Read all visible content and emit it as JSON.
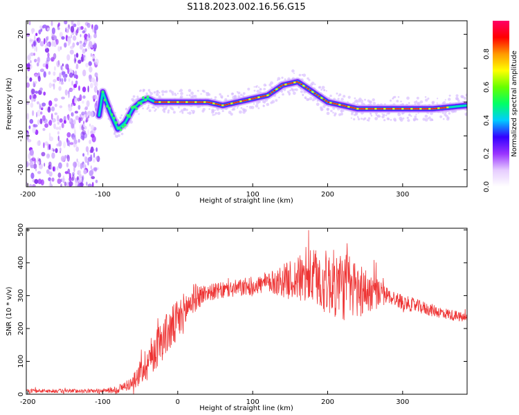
{
  "title": "S118.2023.002.16.56.G15",
  "chart_data": [
    {
      "type": "heatmap",
      "xlabel": "Height of straight line (km)",
      "ylabel": "Frequency (Hz)",
      "xlim": [
        -202,
        386
      ],
      "ylim": [
        -25,
        24
      ],
      "xticks": [
        -200,
        -100,
        0,
        100,
        200,
        300
      ],
      "yticks": [
        -20,
        -10,
        0,
        10,
        20
      ],
      "colorbar": {
        "label": "Normalized spectral amplitude",
        "range": [
          0,
          1
        ],
        "ticks": [
          "0.0",
          "0.2",
          "0.4",
          "0.6",
          "0.8"
        ],
        "colors": [
          "#ffffff",
          "#e6ccff",
          "#9933ff",
          "#3300ff",
          "#00ccff",
          "#00ff66",
          "#66ff00",
          "#ffff00",
          "#ff9900",
          "#ff0000",
          "#ff0066"
        ]
      },
      "ridge": {
        "x": [
          -105,
          -100,
          -90,
          -80,
          -70,
          -60,
          -50,
          -40,
          -30,
          0,
          40,
          60,
          80,
          100,
          120,
          140,
          160,
          180,
          200,
          220,
          240,
          260,
          300,
          340,
          386
        ],
        "y": [
          -4,
          3,
          -3,
          -8,
          -6,
          -2,
          0,
          1,
          0,
          0,
          0,
          -1,
          0,
          1,
          2,
          5,
          6,
          3,
          0,
          -1,
          -2,
          -2,
          -2,
          -2,
          -1
        ]
      },
      "noise_region_x": [
        -202,
        -106
      ]
    },
    {
      "type": "line",
      "xlabel": "Height of straight line (km)",
      "ylabel": "SNR (10 * v/v)",
      "xlim": [
        -202,
        386
      ],
      "ylim": [
        0,
        505
      ],
      "xticks": [
        -200,
        -100,
        0,
        100,
        200,
        300
      ],
      "yticks": [
        0,
        100,
        200,
        300,
        400,
        500
      ],
      "color": "#ee3333",
      "envelope": {
        "x": [
          -202,
          -100,
          -80,
          -60,
          -40,
          -20,
          0,
          20,
          40,
          60,
          100,
          140,
          160,
          180,
          200,
          220,
          240,
          260,
          280,
          300,
          340,
          386
        ],
        "y": [
          10,
          10,
          15,
          35,
          100,
          170,
          220,
          290,
          310,
          315,
          330,
          345,
          350,
          355,
          340,
          330,
          320,
          310,
          300,
          280,
          255,
          230
        ]
      },
      "noise_amplitude": {
        "x": [
          -202,
          -100,
          -60,
          -40,
          0,
          40,
          120,
          180,
          220,
          240,
          280,
          386
        ],
        "y": [
          6,
          6,
          20,
          60,
          70,
          25,
          30,
          90,
          110,
          90,
          25,
          15
        ]
      }
    }
  ]
}
